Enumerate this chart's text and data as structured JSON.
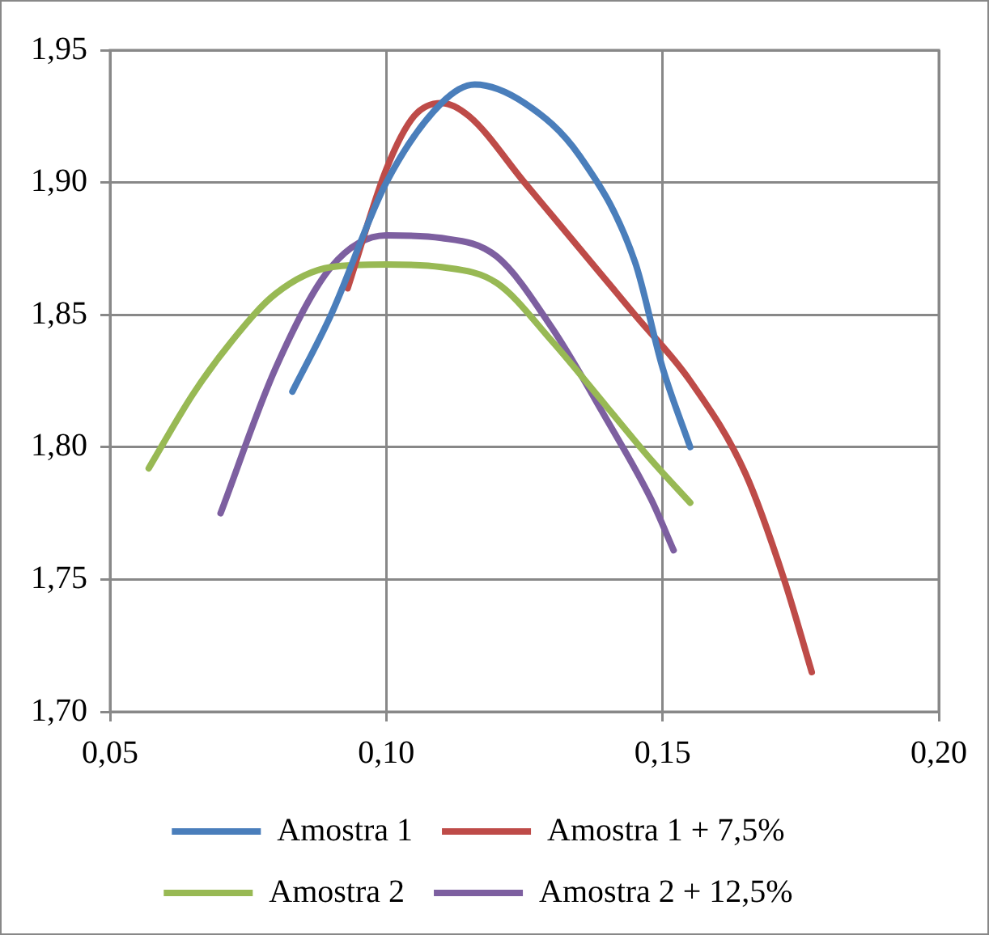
{
  "chart_data": {
    "type": "line",
    "xlim": [
      0.05,
      0.2
    ],
    "ylim": [
      1.7,
      1.95
    ],
    "xticks": [
      {
        "value": 0.05,
        "label": "0,05"
      },
      {
        "value": 0.1,
        "label": "0,10"
      },
      {
        "value": 0.15,
        "label": "0,15"
      },
      {
        "value": 0.2,
        "label": "0,20"
      }
    ],
    "yticks": [
      {
        "value": 1.7,
        "label": "1,70"
      },
      {
        "value": 1.75,
        "label": "1,75"
      },
      {
        "value": 1.8,
        "label": "1,80"
      },
      {
        "value": 1.85,
        "label": "1,85"
      },
      {
        "value": 1.9,
        "label": "1,90"
      },
      {
        "value": 1.95,
        "label": "1,95"
      }
    ],
    "grid": true,
    "legend": "bottom",
    "marker": "none",
    "line_style": "solid",
    "series": [
      {
        "name": "Amostra 1",
        "color": "#4a7ebb",
        "x": [
          0.083,
          0.09,
          0.1,
          0.11,
          0.116,
          0.125,
          0.135,
          0.145,
          0.15,
          0.155
        ],
        "values": [
          1.821,
          1.85,
          1.9,
          1.93,
          1.937,
          1.93,
          1.91,
          1.87,
          1.83,
          1.8
        ]
      },
      {
        "name": "Amostra 1 + 7,5%",
        "color": "#be4b48",
        "x": [
          0.093,
          0.1,
          0.105,
          0.11,
          0.115,
          0.125,
          0.135,
          0.145,
          0.155,
          0.165,
          0.172,
          0.177
        ],
        "values": [
          1.86,
          1.905,
          1.925,
          1.93,
          1.925,
          1.9,
          1.875,
          1.85,
          1.825,
          1.79,
          1.75,
          1.715
        ]
      },
      {
        "name": "Amostra 2",
        "color": "#98b954",
        "x": [
          0.057,
          0.065,
          0.072,
          0.08,
          0.09,
          0.1,
          0.11,
          0.12,
          0.13,
          0.14,
          0.148,
          0.155
        ],
        "values": [
          1.792,
          1.82,
          1.84,
          1.858,
          1.868,
          1.869,
          1.868,
          1.862,
          1.84,
          1.815,
          1.795,
          1.779
        ]
      },
      {
        "name": "Amostra 2 + 12,5%",
        "color": "#7d5fa0",
        "x": [
          0.07,
          0.08,
          0.09,
          0.1,
          0.11,
          0.12,
          0.13,
          0.14,
          0.148,
          0.152
        ],
        "values": [
          1.775,
          1.83,
          1.868,
          1.88,
          1.879,
          1.872,
          1.845,
          1.81,
          1.78,
          1.761
        ]
      }
    ]
  }
}
